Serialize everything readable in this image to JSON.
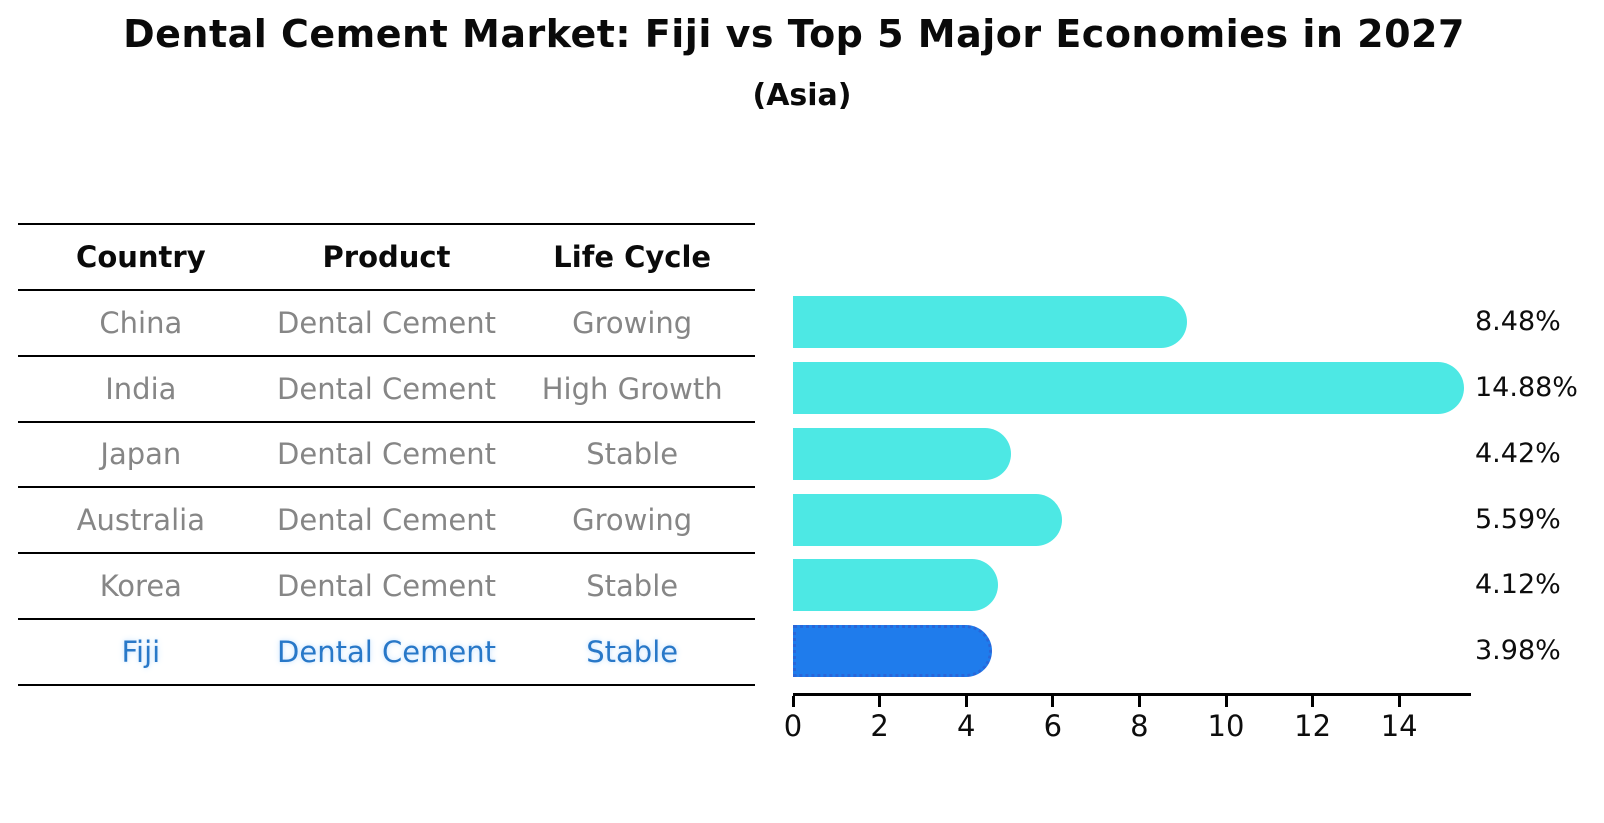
{
  "header": {
    "title": "Dental Cement Market: Fiji vs Top 5 Major Economies in 2027",
    "subtitle": "(Asia)"
  },
  "table": {
    "headers": [
      "Country",
      "Product",
      "Life Cycle"
    ],
    "rows": [
      {
        "country": "China",
        "product": "Dental Cement",
        "life_cycle": "Growing"
      },
      {
        "country": "India",
        "product": "Dental Cement",
        "life_cycle": "High Growth"
      },
      {
        "country": "Japan",
        "product": "Dental Cement",
        "life_cycle": "Stable"
      },
      {
        "country": "Australia",
        "product": "Dental Cement",
        "life_cycle": "Growing"
      },
      {
        "country": "Korea",
        "product": "Dental Cement",
        "life_cycle": "Stable"
      },
      {
        "country": "Fiji",
        "product": "Dental Cement",
        "life_cycle": "Stable"
      }
    ],
    "highlight_row": "Fiji"
  },
  "chart_data": {
    "type": "bar",
    "orientation": "horizontal",
    "title": "Dental Cement Market: Fiji vs Top 5 Major Economies in 2027",
    "subtitle": "(Asia)",
    "categories": [
      "China",
      "India",
      "Japan",
      "Australia",
      "Korea",
      "Fiji"
    ],
    "values": [
      8.48,
      14.88,
      4.42,
      5.59,
      4.12,
      3.98
    ],
    "value_labels": [
      "8.48%",
      "14.88%",
      "4.42%",
      "5.59%",
      "4.12%",
      "3.98%"
    ],
    "xlabel": "",
    "ylabel": "",
    "xlim": [
      0,
      15.6
    ],
    "x_ticks": [
      0,
      2,
      4,
      6,
      8,
      10,
      12,
      14
    ],
    "grid": false,
    "legend": null,
    "bar_color": "#4DE8E4",
    "highlight_color": "#1F7CEC",
    "highlight_index": 5,
    "highlight_category": "Fiji",
    "value_label_color": "#0d0d0d",
    "axis_color": "#000000"
  }
}
